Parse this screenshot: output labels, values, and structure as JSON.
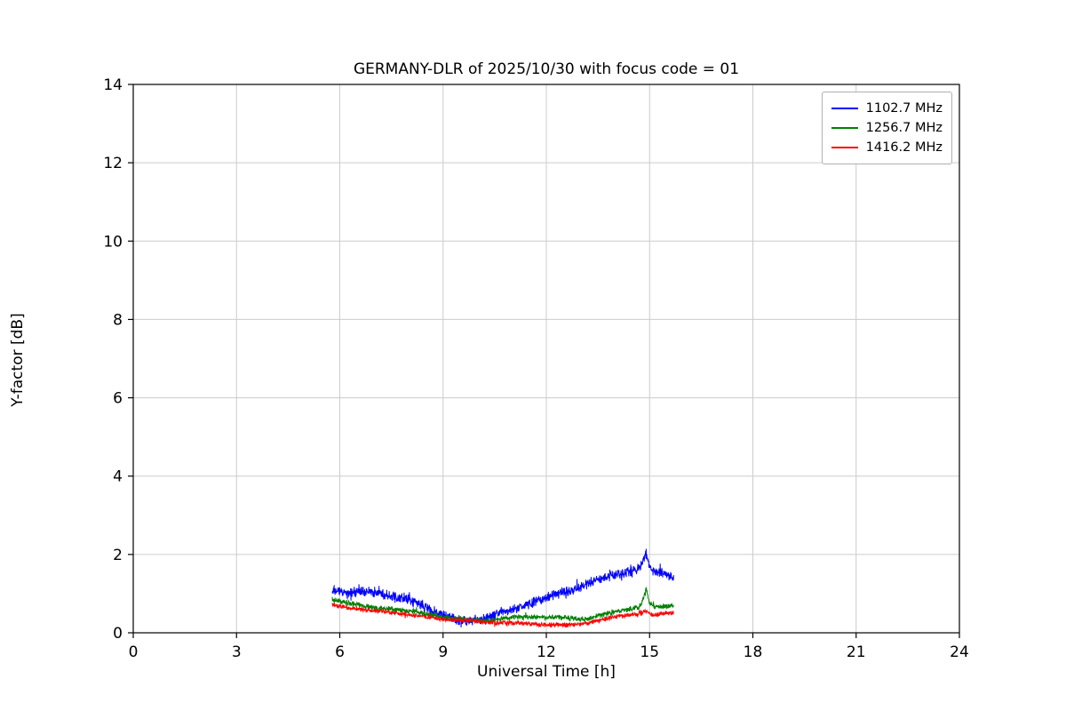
{
  "figure": {
    "title": "GERMANY-DLR of 2025/10/30 with focus code = 01",
    "xlabel": "Universal Time [h]",
    "ylabel": "Y-factor [dB]"
  },
  "chart_data": {
    "type": "line",
    "title": "GERMANY-DLR of 2025/10/30 with focus code = 01",
    "xlabel": "Universal Time [h]",
    "ylabel": "Y-factor [dB]",
    "xlim": [
      0,
      24
    ],
    "ylim": [
      0,
      14
    ],
    "xticks": [
      0,
      3,
      6,
      9,
      12,
      15,
      18,
      21,
      24
    ],
    "yticks": [
      0,
      2,
      4,
      6,
      8,
      10,
      12,
      14
    ],
    "grid": true,
    "grid_color": "#cccccc",
    "legend_position": "upper right",
    "series": [
      {
        "name": "1102.7 MHz",
        "color": "#0000ff",
        "noise_amplitude": 0.16,
        "points": [
          [
            5.78,
            1.05
          ],
          [
            6.0,
            1.05
          ],
          [
            6.3,
            1.0
          ],
          [
            6.6,
            1.05
          ],
          [
            6.9,
            1.05
          ],
          [
            7.2,
            1.0
          ],
          [
            7.5,
            0.95
          ],
          [
            7.8,
            0.9
          ],
          [
            8.1,
            0.8
          ],
          [
            8.4,
            0.7
          ],
          [
            8.7,
            0.55
          ],
          [
            9.0,
            0.45
          ],
          [
            9.3,
            0.35
          ],
          [
            9.6,
            0.3
          ],
          [
            9.9,
            0.3
          ],
          [
            10.2,
            0.35
          ],
          [
            10.5,
            0.45
          ],
          [
            10.8,
            0.55
          ],
          [
            11.1,
            0.6
          ],
          [
            11.4,
            0.7
          ],
          [
            11.7,
            0.8
          ],
          [
            12.0,
            0.9
          ],
          [
            12.3,
            1.0
          ],
          [
            12.6,
            1.05
          ],
          [
            12.9,
            1.15
          ],
          [
            13.2,
            1.25
          ],
          [
            13.5,
            1.35
          ],
          [
            13.8,
            1.45
          ],
          [
            14.1,
            1.5
          ],
          [
            14.4,
            1.55
          ],
          [
            14.6,
            1.6
          ],
          [
            14.8,
            1.8
          ],
          [
            14.9,
            2.0
          ],
          [
            15.0,
            1.7
          ],
          [
            15.1,
            1.6
          ],
          [
            15.3,
            1.55
          ],
          [
            15.5,
            1.5
          ],
          [
            15.7,
            1.35
          ]
        ]
      },
      {
        "name": "1256.7 MHz",
        "color": "#008000",
        "noise_amplitude": 0.08,
        "points": [
          [
            5.78,
            0.85
          ],
          [
            6.0,
            0.8
          ],
          [
            6.3,
            0.75
          ],
          [
            6.6,
            0.7
          ],
          [
            6.9,
            0.65
          ],
          [
            7.2,
            0.62
          ],
          [
            7.5,
            0.6
          ],
          [
            7.8,
            0.57
          ],
          [
            8.1,
            0.55
          ],
          [
            8.4,
            0.5
          ],
          [
            8.7,
            0.45
          ],
          [
            9.0,
            0.4
          ],
          [
            9.3,
            0.38
          ],
          [
            9.6,
            0.35
          ],
          [
            9.9,
            0.32
          ],
          [
            10.2,
            0.3
          ],
          [
            10.5,
            0.33
          ],
          [
            10.8,
            0.37
          ],
          [
            11.1,
            0.4
          ],
          [
            11.4,
            0.4
          ],
          [
            11.7,
            0.4
          ],
          [
            12.0,
            0.4
          ],
          [
            12.3,
            0.4
          ],
          [
            12.6,
            0.38
          ],
          [
            12.9,
            0.35
          ],
          [
            13.2,
            0.35
          ],
          [
            13.5,
            0.45
          ],
          [
            13.8,
            0.5
          ],
          [
            14.1,
            0.55
          ],
          [
            14.4,
            0.6
          ],
          [
            14.7,
            0.65
          ],
          [
            14.85,
            0.95
          ],
          [
            14.9,
            1.15
          ],
          [
            15.0,
            0.75
          ],
          [
            15.2,
            0.68
          ],
          [
            15.4,
            0.65
          ],
          [
            15.7,
            0.7
          ]
        ]
      },
      {
        "name": "1416.2 MHz",
        "color": "#ff0000",
        "noise_amplitude": 0.07,
        "points": [
          [
            5.78,
            0.72
          ],
          [
            6.0,
            0.68
          ],
          [
            6.3,
            0.63
          ],
          [
            6.6,
            0.6
          ],
          [
            6.9,
            0.57
          ],
          [
            7.2,
            0.55
          ],
          [
            7.5,
            0.52
          ],
          [
            7.8,
            0.48
          ],
          [
            8.1,
            0.45
          ],
          [
            8.4,
            0.42
          ],
          [
            8.7,
            0.38
          ],
          [
            9.0,
            0.35
          ],
          [
            9.3,
            0.33
          ],
          [
            9.6,
            0.32
          ],
          [
            9.9,
            0.3
          ],
          [
            10.2,
            0.28
          ],
          [
            10.5,
            0.26
          ],
          [
            10.8,
            0.25
          ],
          [
            11.1,
            0.25
          ],
          [
            11.4,
            0.24
          ],
          [
            11.7,
            0.22
          ],
          [
            12.0,
            0.2
          ],
          [
            12.3,
            0.2
          ],
          [
            12.6,
            0.2
          ],
          [
            12.9,
            0.22
          ],
          [
            13.2,
            0.25
          ],
          [
            13.5,
            0.3
          ],
          [
            13.8,
            0.38
          ],
          [
            14.1,
            0.42
          ],
          [
            14.4,
            0.45
          ],
          [
            14.7,
            0.48
          ],
          [
            14.9,
            0.55
          ],
          [
            15.1,
            0.45
          ],
          [
            15.3,
            0.48
          ],
          [
            15.5,
            0.5
          ],
          [
            15.7,
            0.5
          ]
        ]
      }
    ]
  },
  "layout_colors": {
    "axis": "#000000",
    "background": "#ffffff"
  }
}
